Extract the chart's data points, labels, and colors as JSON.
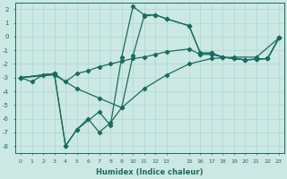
{
  "xlabel": "Humidex (Indice chaleur)",
  "bg_color": "#cce8e2",
  "line_color": "#1a6b60",
  "grid_color": "#aad8d0",
  "xlim": [
    -0.5,
    23.5
  ],
  "ylim": [
    -8.5,
    2.5
  ],
  "xtick_pos": [
    0,
    1,
    2,
    3,
    4,
    5,
    6,
    7,
    8,
    9,
    10,
    11,
    12,
    13,
    15,
    16,
    17,
    18,
    19,
    20,
    21,
    22,
    23
  ],
  "xtick_labels": [
    "0",
    "1",
    "2",
    "3",
    "4",
    "5",
    "6",
    "7",
    "8",
    "9",
    "10",
    "11",
    "12",
    "13",
    "15",
    "16",
    "17",
    "18",
    "19",
    "20",
    "21",
    "22",
    "23"
  ],
  "yticks": [
    2,
    1,
    0,
    -1,
    -2,
    -3,
    -4,
    -5,
    -6,
    -7,
    -8
  ],
  "line1_x": [
    0,
    1,
    2,
    3,
    4,
    5,
    6,
    7,
    8,
    9,
    10,
    11,
    12,
    13,
    15,
    16,
    17,
    18,
    19,
    20,
    21,
    22,
    23
  ],
  "line1_y": [
    -3.0,
    -3.3,
    -2.8,
    -2.7,
    -3.3,
    -2.7,
    -2.5,
    -2.2,
    -2.0,
    -1.8,
    -1.6,
    -1.5,
    -1.3,
    -1.1,
    -0.9,
    -1.3,
    -1.3,
    -1.5,
    -1.6,
    -1.7,
    -1.65,
    -1.6,
    -0.1
  ],
  "line2_x": [
    0,
    3,
    4,
    5,
    7,
    8,
    9,
    10,
    11,
    12,
    13,
    15,
    16,
    17,
    18,
    19,
    20,
    21,
    22,
    23
  ],
  "line2_y": [
    -3.0,
    -2.7,
    -8.0,
    -6.8,
    -5.5,
    -6.5,
    -1.5,
    2.2,
    1.6,
    1.6,
    1.3,
    0.8,
    -1.2,
    -1.2,
    -1.5,
    -1.6,
    -1.7,
    -1.65,
    -1.6,
    -0.1
  ],
  "line3_x": [
    0,
    3,
    4,
    5,
    6,
    7,
    8,
    9,
    10,
    11,
    12,
    13,
    15,
    16,
    17,
    18,
    19,
    20,
    21,
    22,
    23
  ],
  "line3_y": [
    -3.0,
    -2.7,
    -8.0,
    -6.8,
    -6.0,
    -7.0,
    -6.3,
    -5.2,
    -1.4,
    1.5,
    1.6,
    1.3,
    0.8,
    -1.2,
    -1.2,
    -1.5,
    -1.6,
    -1.7,
    -1.65,
    -1.6,
    -0.1
  ],
  "line4_x": [
    0,
    3,
    5,
    7,
    9,
    11,
    13,
    15,
    17,
    19,
    21,
    23
  ],
  "line4_y": [
    -3.0,
    -2.8,
    -3.8,
    -4.5,
    -5.2,
    -3.8,
    -2.8,
    -2.0,
    -1.6,
    -1.5,
    -1.5,
    -0.1
  ]
}
